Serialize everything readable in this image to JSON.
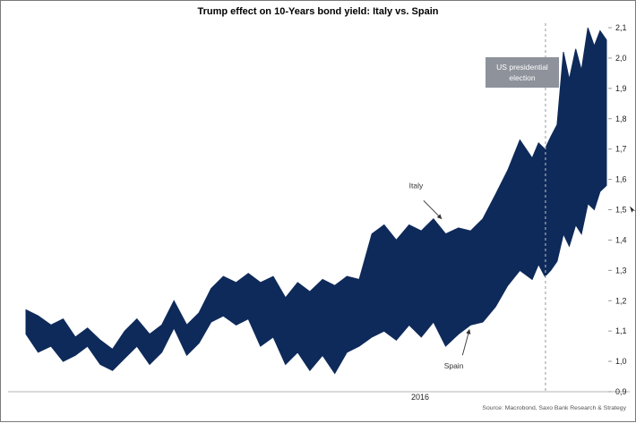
{
  "title": "Trump effect on 10-Years bond yield: Italy vs. Spain",
  "source": "Source: Macrobond, Saxo Bank Research & Strategy",
  "x_axis_label": "2016",
  "election": {
    "label": "US presidential election"
  },
  "chart_data": {
    "type": "area",
    "title": "Trump effect on 10-Years bond yield: Italy vs. Spain",
    "xlabel": "2016",
    "ylabel": "",
    "ylim": [
      0.9,
      2.1
    ],
    "grid": false,
    "legend_position": "inline-annotations",
    "y_ticks": [
      {
        "value": 2.1,
        "label": "2,1"
      },
      {
        "value": 2.0,
        "label": "2,0"
      },
      {
        "value": 1.9,
        "label": "1,9"
      },
      {
        "value": 1.8,
        "label": "1,8"
      },
      {
        "value": 1.7,
        "label": "1,7"
      },
      {
        "value": 1.6,
        "label": "1,6"
      },
      {
        "value": 1.5,
        "label": "1,5",
        "cursor": true
      },
      {
        "value": 1.4,
        "label": "1,4"
      },
      {
        "value": 1.3,
        "label": "1,3"
      },
      {
        "value": 1.2,
        "label": "1,2"
      },
      {
        "value": 1.1,
        "label": "1,1"
      },
      {
        "value": 1.0,
        "label": "1,0"
      },
      {
        "value": 0.9,
        "label": "0,9"
      }
    ],
    "x": [
      0.0,
      0.021,
      0.043,
      0.064,
      0.085,
      0.106,
      0.128,
      0.149,
      0.17,
      0.191,
      0.213,
      0.234,
      0.255,
      0.277,
      0.298,
      0.319,
      0.34,
      0.362,
      0.383,
      0.404,
      0.426,
      0.447,
      0.468,
      0.489,
      0.511,
      0.532,
      0.553,
      0.574,
      0.596,
      0.617,
      0.638,
      0.66,
      0.681,
      0.702,
      0.723,
      0.745,
      0.766,
      0.787,
      0.809,
      0.83,
      0.851,
      0.872,
      0.883,
      0.894,
      0.904,
      0.915,
      0.926,
      0.936,
      0.947,
      0.957,
      0.968,
      0.979,
      0.989,
      1.0
    ],
    "series": [
      {
        "name": "Italy",
        "values": [
          1.17,
          1.15,
          1.12,
          1.14,
          1.08,
          1.11,
          1.07,
          1.04,
          1.1,
          1.14,
          1.09,
          1.12,
          1.2,
          1.12,
          1.16,
          1.24,
          1.28,
          1.26,
          1.29,
          1.26,
          1.28,
          1.21,
          1.26,
          1.23,
          1.27,
          1.25,
          1.28,
          1.27,
          1.42,
          1.45,
          1.4,
          1.45,
          1.43,
          1.47,
          1.42,
          1.44,
          1.43,
          1.47,
          1.55,
          1.63,
          1.73,
          1.67,
          1.72,
          1.7,
          1.74,
          1.78,
          2.02,
          1.93,
          2.03,
          1.96,
          2.1,
          2.04,
          2.09,
          2.06
        ]
      },
      {
        "name": "Spain",
        "values": [
          1.09,
          1.03,
          1.05,
          1.0,
          1.02,
          1.05,
          0.99,
          0.97,
          1.01,
          1.05,
          0.99,
          1.03,
          1.11,
          1.02,
          1.06,
          1.13,
          1.15,
          1.12,
          1.14,
          1.05,
          1.08,
          0.99,
          1.03,
          0.97,
          1.02,
          0.96,
          1.03,
          1.05,
          1.08,
          1.1,
          1.07,
          1.12,
          1.08,
          1.13,
          1.05,
          1.09,
          1.12,
          1.13,
          1.18,
          1.25,
          1.3,
          1.27,
          1.32,
          1.28,
          1.3,
          1.33,
          1.42,
          1.38,
          1.45,
          1.42,
          1.52,
          1.5,
          1.56,
          1.58
        ]
      }
    ],
    "election_line_x": 0.895,
    "annotations": [
      {
        "label": "Italy",
        "label_x": 0.672,
        "label_v": 1.58,
        "arrow": {
          "from_x": 0.685,
          "from_v": 1.53,
          "to_x": 0.716,
          "to_v": 1.47
        }
      },
      {
        "label": "Spain",
        "label_x": 0.737,
        "label_v": 0.985,
        "arrow": {
          "from_x": 0.752,
          "from_v": 1.02,
          "to_x": 0.764,
          "to_v": 1.105
        }
      }
    ],
    "colors": {
      "band": "#0e2a5a",
      "dashed_line": "#a6aab1",
      "election_box": "#8d929b",
      "axis": "#b5b5b5",
      "annotation_text": "#333333",
      "tick_text": "#222222"
    }
  }
}
